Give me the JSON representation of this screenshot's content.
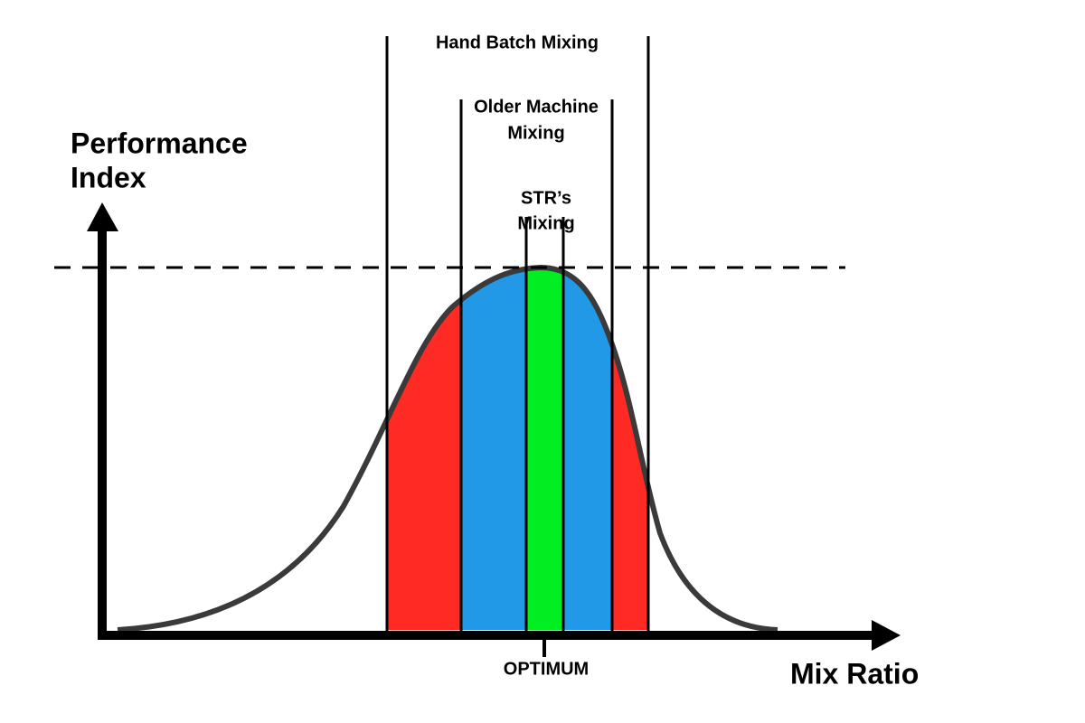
{
  "y_axis": {
    "label_lines": [
      "Performance",
      "Index"
    ]
  },
  "x_axis": {
    "label": "Mix Ratio",
    "marker": "OPTIMUM"
  },
  "ranges": [
    {
      "label_lines": [
        "Hand Batch Mixing"
      ]
    },
    {
      "label_lines": [
        "Older Machine",
        "Mixing"
      ]
    },
    {
      "label_lines": [
        "STR’s",
        "Mixing"
      ]
    }
  ]
}
